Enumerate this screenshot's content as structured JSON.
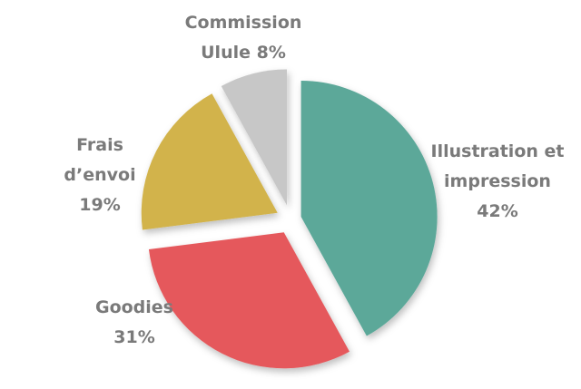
{
  "chart_data": {
    "type": "pie",
    "title": "",
    "slices": [
      {
        "name": "Illustration et impression",
        "value": 42,
        "label_lines": [
          "Illustration et",
          "impression",
          "42%"
        ],
        "color": "#5ba899"
      },
      {
        "name": "Goodies",
        "value": 31,
        "label_lines": [
          "Goodies",
          "31%"
        ],
        "color": "#e5595b"
      },
      {
        "name": "Frais d’envoi",
        "value": 19,
        "label_lines": [
          "Frais",
          "d’envoi",
          "19%"
        ],
        "color": "#d2b34c"
      },
      {
        "name": "Commission Ulule",
        "value": 8,
        "label_lines": [
          "Commission",
          "Ulule 8%"
        ],
        "color": "#c7c7c7"
      }
    ]
  }
}
